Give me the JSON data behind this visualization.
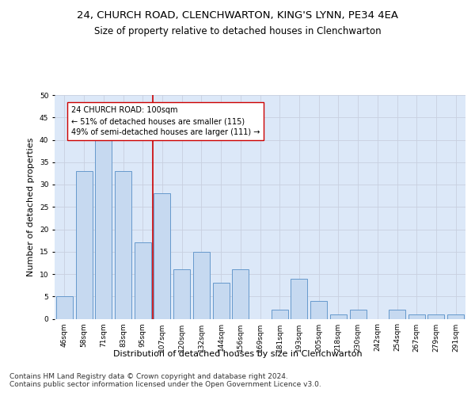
{
  "title1": "24, CHURCH ROAD, CLENCHWARTON, KING'S LYNN, PE34 4EA",
  "title2": "Size of property relative to detached houses in Clenchwarton",
  "xlabel": "Distribution of detached houses by size in Clenchwarton",
  "ylabel": "Number of detached properties",
  "categories": [
    "46sqm",
    "58sqm",
    "71sqm",
    "83sqm",
    "95sqm",
    "107sqm",
    "120sqm",
    "132sqm",
    "144sqm",
    "156sqm",
    "169sqm",
    "181sqm",
    "193sqm",
    "205sqm",
    "218sqm",
    "230sqm",
    "242sqm",
    "254sqm",
    "267sqm",
    "279sqm",
    "291sqm"
  ],
  "values": [
    5,
    33,
    42,
    33,
    17,
    28,
    11,
    15,
    8,
    11,
    0,
    2,
    9,
    4,
    1,
    2,
    0,
    2,
    1,
    1,
    1
  ],
  "bar_color": "#c6d9f0",
  "bar_edge_color": "#6699cc",
  "vline_color": "#cc0000",
  "annotation_text": "24 CHURCH ROAD: 100sqm\n← 51% of detached houses are smaller (115)\n49% of semi-detached houses are larger (111) →",
  "annotation_box_color": "#ffffff",
  "annotation_box_edge": "#cc0000",
  "ylim": [
    0,
    50
  ],
  "yticks": [
    0,
    5,
    10,
    15,
    20,
    25,
    30,
    35,
    40,
    45,
    50
  ],
  "grid_color": "#c8d0e0",
  "bg_color": "#dce8f8",
  "footer": "Contains HM Land Registry data © Crown copyright and database right 2024.\nContains public sector information licensed under the Open Government Licence v3.0.",
  "title1_fontsize": 9.5,
  "title2_fontsize": 8.5,
  "tick_fontsize": 6.5,
  "ylabel_fontsize": 8,
  "xlabel_fontsize": 8,
  "footer_fontsize": 6.5,
  "annotation_fontsize": 7
}
